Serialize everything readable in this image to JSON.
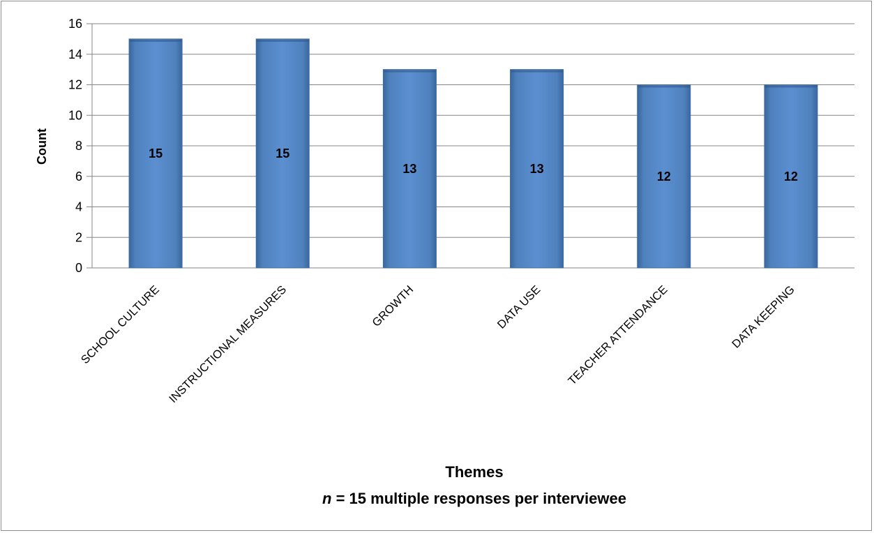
{
  "chart_data": {
    "type": "bar",
    "categories": [
      "SCHOOL CULTURE",
      "INSTRUCTIONAL MEASURES",
      "GROWTH",
      "DATA USE",
      "TEACHER ATTENDANCE",
      "DATA KEEPING"
    ],
    "values": [
      15,
      15,
      13,
      13,
      12,
      12
    ],
    "data_labels": [
      "15",
      "15",
      "13",
      "13",
      "12",
      "12"
    ],
    "ylabel": "Count",
    "xlabel": "Themes",
    "note_italic": "n",
    "note_rest": " = 15 multiple responses per interviewee",
    "ylim": [
      0,
      16
    ],
    "yticks": [
      0,
      2,
      4,
      6,
      8,
      10,
      12,
      14,
      16
    ],
    "grid": true,
    "legend": "none",
    "bar_color": "#4f81bd"
  }
}
